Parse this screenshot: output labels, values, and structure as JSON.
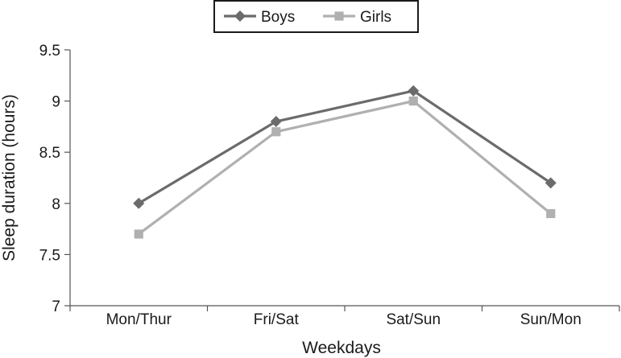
{
  "chart_data": {
    "type": "line",
    "title": "",
    "xlabel": "Weekdays",
    "ylabel": "Sleep duration (hours)",
    "categories": [
      "Mon/Thur",
      "Fri/Sat",
      "Sat/Sun",
      "Sun/Mon"
    ],
    "ylim": [
      7,
      9.5
    ],
    "yticks": [
      "7",
      "7.5",
      "8",
      "8.5",
      "9",
      "9.5"
    ],
    "grid": false,
    "legend_position": "top-center",
    "series": [
      {
        "name": "Boys",
        "values": [
          8.0,
          8.8,
          9.1,
          8.2
        ],
        "color": "#6b6b6b",
        "marker": "diamond"
      },
      {
        "name": "Girls",
        "values": [
          7.7,
          8.7,
          9.0,
          7.9
        ],
        "color": "#b0b0b0",
        "marker": "square"
      }
    ]
  }
}
